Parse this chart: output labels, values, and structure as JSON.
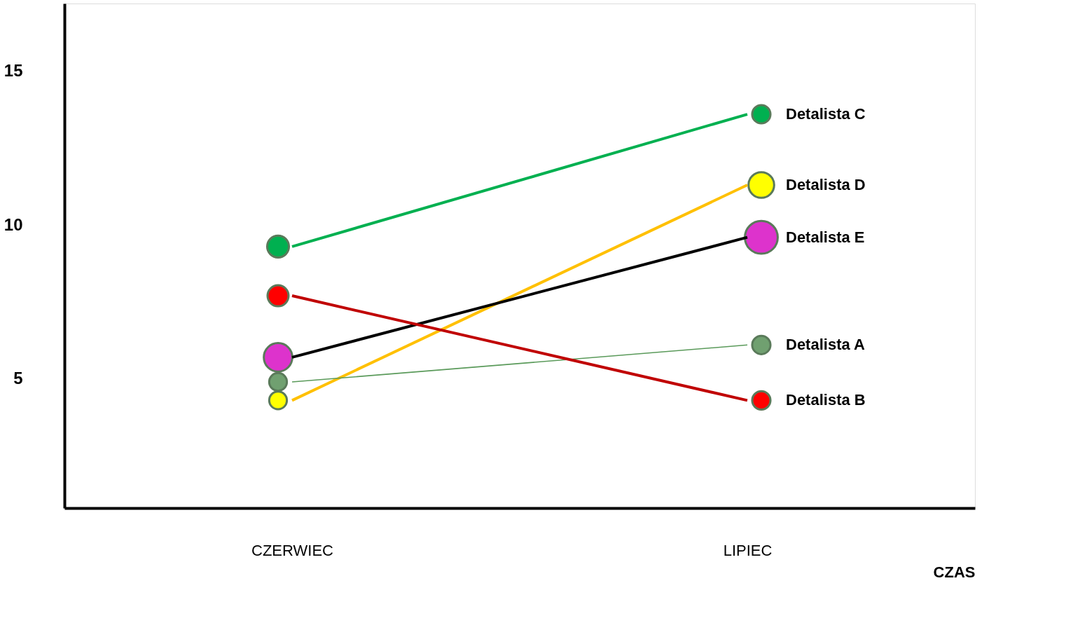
{
  "chart_data": {
    "type": "line",
    "xlabel": "CZAS",
    "categories": [
      "CZERWIEC",
      "LIPIEC"
    ],
    "ylim": [
      0.8,
      17.2
    ],
    "yticks": [
      5,
      10,
      15
    ],
    "legend": false,
    "series": [
      {
        "name": "Detalista  C",
        "color": "#00b050",
        "values": [
          9.3,
          13.6
        ]
      },
      {
        "name": "Detalista D",
        "color": "#ffc000",
        "values": [
          4.3,
          11.3
        ]
      },
      {
        "name": "Detalista E",
        "color": "#000000",
        "values": [
          5.7,
          9.6
        ]
      },
      {
        "name": "Detalista A",
        "color": "#5a9a5a",
        "values": [
          4.9,
          6.1
        ]
      },
      {
        "name": "Detalista B",
        "color": "#c00000",
        "values": [
          7.7,
          4.3
        ]
      },
      {
        "type": "bubble",
        "x": [
          "CZERWIEC",
          "CZERWIEC",
          "CZERWIEC",
          "CZERWIEC",
          "CZERWIEC",
          "LIPIEC",
          "LIPIEC",
          "LIPIEC",
          "LIPIEC",
          "LIPIEC"
        ],
        "values": [
          9.3,
          7.7,
          5.7,
          4.9,
          4.3,
          13.6,
          11.3,
          9.6,
          6.1,
          4.3
        ],
        "sizes": [
          0.44,
          0.41,
          0.75,
          0.29,
          0.29,
          0.31,
          0.61,
          1,
          0.31,
          0.31
        ],
        "colors": [
          "#00b050",
          "#ff0000",
          "#dd33cc",
          "#70a070",
          "#ffff00",
          "#00b050",
          "#ffff00",
          "#dd33cc",
          "#70a070",
          "#ff0000"
        ]
      }
    ]
  }
}
